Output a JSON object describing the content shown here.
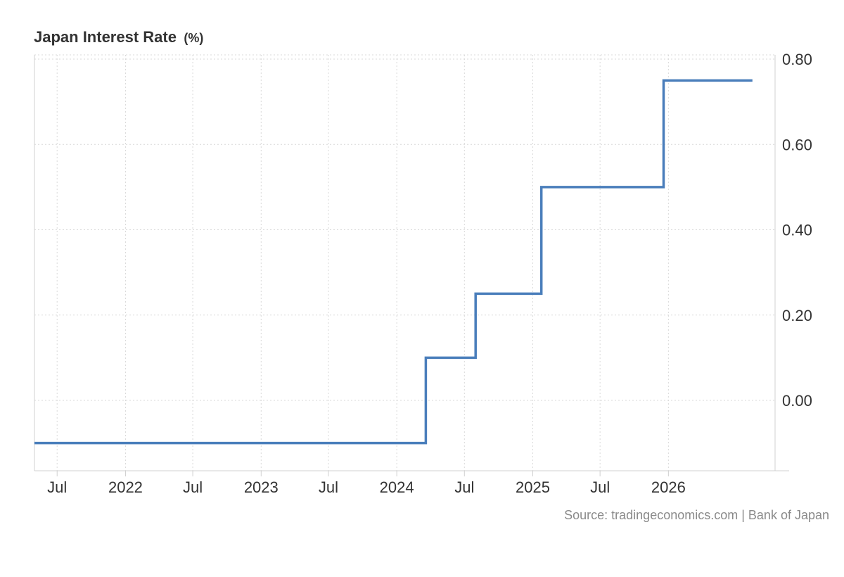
{
  "chart_data": {
    "type": "line",
    "step": true,
    "title": "Japan Interest Rate",
    "unit": "(%)",
    "x_ticks": [
      {
        "label": "Jul",
        "date": "2021-07-01"
      },
      {
        "label": "2022",
        "date": "2022-01-01"
      },
      {
        "label": "Jul",
        "date": "2022-07-01"
      },
      {
        "label": "2023",
        "date": "2023-01-01"
      },
      {
        "label": "Jul",
        "date": "2023-07-01"
      },
      {
        "label": "2024",
        "date": "2024-01-01"
      },
      {
        "label": "Jul",
        "date": "2024-07-01"
      },
      {
        "label": "2025",
        "date": "2025-01-01"
      },
      {
        "label": "Jul",
        "date": "2025-07-01"
      },
      {
        "label": "2026",
        "date": "2026-01-01"
      }
    ],
    "y_ticks": [
      "0.80",
      "0.60",
      "0.40",
      "0.20",
      "0.00"
    ],
    "xlim": [
      "2021-05-01",
      "2026-10-15"
    ],
    "ylim": [
      -0.165,
      0.81
    ],
    "grid": true,
    "series": [
      {
        "color": "#4a7ebb",
        "points": [
          {
            "x": "2021-05-01",
            "y": -0.1
          },
          {
            "x": "2024-03-19",
            "y": 0.1
          },
          {
            "x": "2024-07-31",
            "y": 0.25
          },
          {
            "x": "2025-01-24",
            "y": 0.5
          },
          {
            "x": "2025-12-19",
            "y": 0.75
          },
          {
            "x": "2026-08-15",
            "y": 0.75
          }
        ]
      }
    ],
    "source": "Source: tradingeconomics.com | Bank of Japan"
  }
}
